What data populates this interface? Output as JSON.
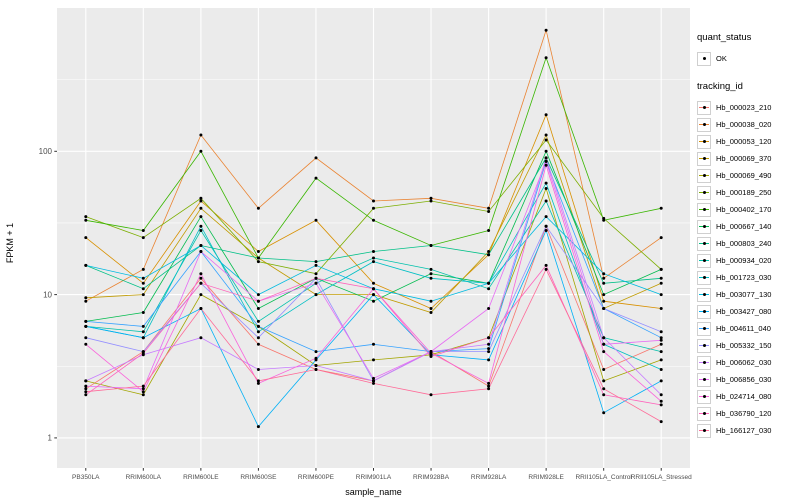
{
  "figure": {
    "background": "#FFFFFF",
    "panel_bg": "#EBEBEB",
    "grid_color": "#FFFFFF",
    "tick_color": "#333333",
    "tick_label_color": "#4D4D4D",
    "point_color": "#000000"
  },
  "axes": {
    "y_tick_labels": [
      "1",
      "10",
      "100"
    ],
    "y_tick_values": [
      1,
      10,
      100
    ],
    "y_minor_values": [
      3.1623,
      31.623,
      316.23
    ]
  },
  "legend": {
    "quant_status": {
      "title": "quant_status",
      "items": [
        {
          "label": "OK"
        }
      ]
    },
    "tracking_id": {
      "title": "tracking_id"
    }
  },
  "chart_data": {
    "type": "line",
    "title": "",
    "xlabel": "sample_name",
    "ylabel": "FPKM + 1",
    "y_scale": "log10",
    "ylim": [
      1,
      1000
    ],
    "grid": true,
    "legend_position": "right",
    "point_shape": "solid-circle-black",
    "categories": [
      "PB350LA",
      "RRIM600LA",
      "RRIM600LE",
      "RRIM600SE",
      "RRIM600PE",
      "RRIM901LA",
      "RRIM928BA",
      "RRIM928LA",
      "RRIM928LE",
      "RRII105LA_Control",
      "RRII105LA_Stressed"
    ],
    "series": [
      {
        "name": "Hb_000023_210",
        "color": "#F8766D",
        "values": [
          2.2,
          4.0,
          13,
          4.5,
          3.0,
          2.5,
          4.0,
          2.3,
          30,
          3.0,
          4.5
        ]
      },
      {
        "name": "Hb_000038_020",
        "color": "#EA8331",
        "values": [
          9,
          15,
          130,
          40,
          90,
          45,
          47,
          40,
          700,
          13,
          25
        ]
      },
      {
        "name": "Hb_000053_120",
        "color": "#D89000",
        "values": [
          25,
          12,
          45,
          20,
          33,
          12,
          8,
          19,
          180,
          9,
          8
        ]
      },
      {
        "name": "Hb_000069_370",
        "color": "#C09B00",
        "values": [
          9.5,
          10,
          40,
          18,
          10,
          10,
          7.5,
          20,
          130,
          8,
          12
        ]
      },
      {
        "name": "Hb_000069_490",
        "color": "#A3A500",
        "values": [
          2.5,
          2.0,
          10,
          6,
          3.2,
          3.5,
          3.8,
          5,
          55,
          2.5,
          3.5
        ]
      },
      {
        "name": "Hb_000189_250",
        "color": "#7CAE00",
        "values": [
          35,
          25,
          47,
          17,
          14,
          40,
          45,
          38,
          120,
          34,
          15
        ]
      },
      {
        "name": "Hb_000402_170",
        "color": "#39B600",
        "values": [
          33,
          28,
          100,
          18,
          65,
          33,
          22,
          28,
          450,
          33,
          40
        ]
      },
      {
        "name": "Hb_000667_140",
        "color": "#00BB4E",
        "values": [
          6.5,
          7.5,
          35,
          8,
          13,
          9,
          14,
          12,
          100,
          10,
          15
        ]
      },
      {
        "name": "Hb_000803_240",
        "color": "#00C087",
        "values": [
          16,
          11,
          22,
          18,
          17,
          20,
          22,
          19,
          90,
          12,
          13
        ]
      },
      {
        "name": "Hb_000934_020",
        "color": "#00C1AB",
        "values": [
          6,
          5.5,
          28,
          6.5,
          12,
          18,
          15,
          11,
          45,
          5,
          4
        ]
      },
      {
        "name": "Hb_001723_030",
        "color": "#00BFC4",
        "values": [
          6,
          5,
          30,
          5.5,
          10,
          17,
          13,
          12,
          60,
          4.5,
          3
        ]
      },
      {
        "name": "Hb_003077_130",
        "color": "#00BAE0",
        "values": [
          16,
          13,
          22,
          10,
          16,
          11,
          9,
          12,
          35,
          14,
          10
        ]
      },
      {
        "name": "Hb_003427_080",
        "color": "#00B0F6",
        "values": [
          6,
          5,
          8,
          1.2,
          3.5,
          10,
          3.8,
          3.5,
          28,
          1.5,
          2.5
        ]
      },
      {
        "name": "Hb_004611_040",
        "color": "#35A2FF",
        "values": [
          6.5,
          6,
          20,
          6,
          4,
          4.5,
          4,
          4.2,
          85,
          8,
          5
        ]
      },
      {
        "name": "Hb_005332_150",
        "color": "#9590FF",
        "values": [
          5,
          4,
          12,
          5,
          13,
          2.5,
          4,
          4,
          30,
          8,
          5.5
        ]
      },
      {
        "name": "Hb_006062_030",
        "color": "#C77CFF",
        "values": [
          2.5,
          3.8,
          5,
          3,
          3.2,
          2.5,
          4,
          4.5,
          90,
          5,
          2
        ]
      },
      {
        "name": "Hb_006856_030",
        "color": "#E76BF3",
        "values": [
          2.3,
          2.2,
          20,
          9,
          12,
          2.6,
          4,
          8,
          85,
          4.5,
          4.8
        ]
      },
      {
        "name": "Hb_024714_080",
        "color": "#FA62DB",
        "values": [
          4.5,
          2.1,
          14,
          2.4,
          3.6,
          11,
          3.9,
          2.4,
          80,
          4,
          1.8
        ]
      },
      {
        "name": "Hb_036790_120",
        "color": "#FF62BC",
        "values": [
          2.0,
          3.9,
          12,
          9,
          13,
          11,
          3.7,
          5,
          16,
          2,
          1.7
        ]
      },
      {
        "name": "Hb_166127_030",
        "color": "#FF6A98",
        "values": [
          2.1,
          2.3,
          8,
          2.5,
          3,
          2.4,
          2,
          2.2,
          15,
          2.2,
          1.3
        ]
      }
    ]
  }
}
